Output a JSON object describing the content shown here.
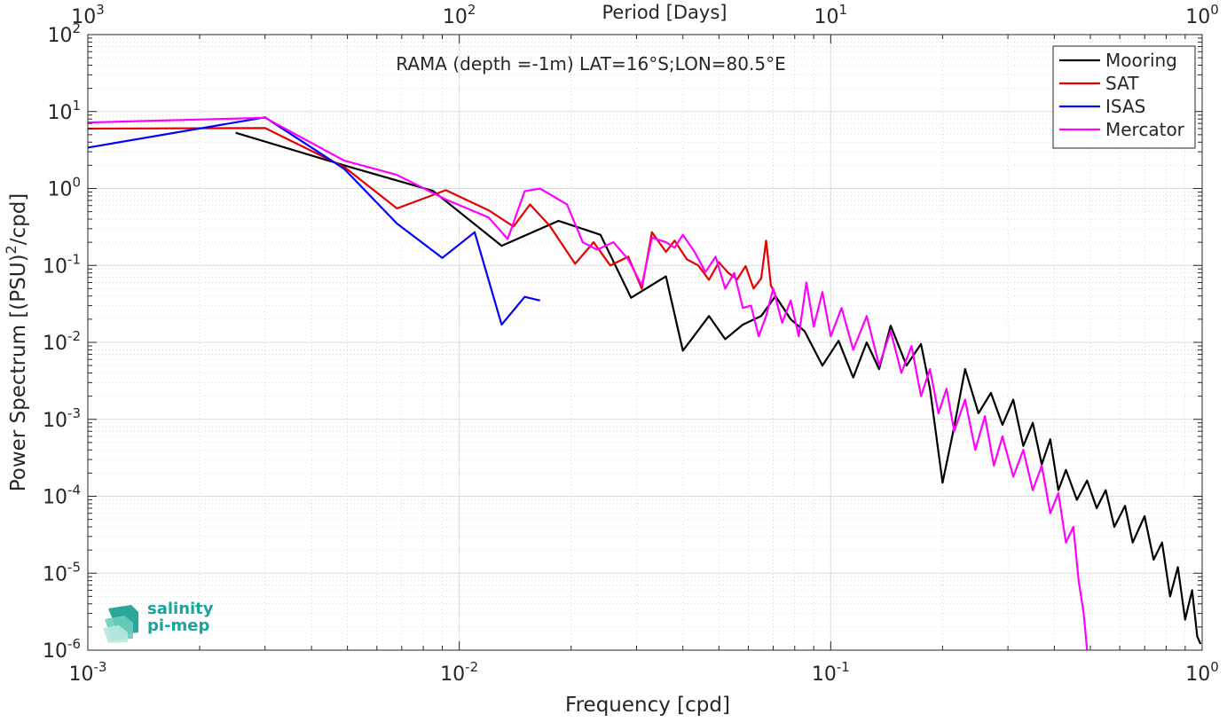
{
  "chart_data": {
    "type": "line",
    "title": "RAMA (depth =-1m) LAT=16°S;LON=80.5°E",
    "xlabel": "Frequency [cpd]",
    "ylabel": "Power Spectrum [(PSU)²/cpd]",
    "top_axis_label": "Period [Days]",
    "x_scale": "log",
    "y_scale": "log",
    "xlim": [
      0.001,
      1
    ],
    "ylim": [
      1e-06,
      100
    ],
    "grid": true,
    "legend_position": "top-right",
    "x_ticks": [
      {
        "value": 0.001,
        "base": "10",
        "exp": "-3"
      },
      {
        "value": 0.01,
        "base": "10",
        "exp": "-2"
      },
      {
        "value": 0.1,
        "base": "10",
        "exp": "-1"
      },
      {
        "value": 1,
        "base": "10",
        "exp": "0"
      }
    ],
    "top_ticks": [
      {
        "value": 0.001,
        "base": "10",
        "exp": "3"
      },
      {
        "value": 0.01,
        "base": "10",
        "exp": "2"
      },
      {
        "value": 0.1,
        "base": "10",
        "exp": "1"
      },
      {
        "value": 1,
        "base": "10",
        "exp": "0"
      }
    ],
    "y_ticks": [
      {
        "value": 100,
        "base": "10",
        "exp": "2"
      },
      {
        "value": 10,
        "base": "10",
        "exp": "1"
      },
      {
        "value": 1,
        "base": "10",
        "exp": "0"
      },
      {
        "value": 0.1,
        "base": "10",
        "exp": "-1"
      },
      {
        "value": 0.01,
        "base": "10",
        "exp": "-2"
      },
      {
        "value": 0.001,
        "base": "10",
        "exp": "-3"
      },
      {
        "value": 0.0001,
        "base": "10",
        "exp": "-4"
      },
      {
        "value": 1e-05,
        "base": "10",
        "exp": "-5"
      },
      {
        "value": 1e-06,
        "base": "10",
        "exp": "-6"
      }
    ],
    "series": [
      {
        "name": "Mooring",
        "color": "#000000",
        "points": [
          [
            0.0025,
            5.3
          ],
          [
            0.0049,
            2.0
          ],
          [
            0.0085,
            0.93
          ],
          [
            0.013,
            0.18
          ],
          [
            0.0185,
            0.38
          ],
          [
            0.024,
            0.25
          ],
          [
            0.029,
            0.038
          ],
          [
            0.036,
            0.072
          ],
          [
            0.04,
            0.0078
          ],
          [
            0.047,
            0.022
          ],
          [
            0.052,
            0.011
          ],
          [
            0.058,
            0.017
          ],
          [
            0.065,
            0.022
          ],
          [
            0.071,
            0.04
          ],
          [
            0.078,
            0.02
          ],
          [
            0.085,
            0.014
          ],
          [
            0.095,
            0.005
          ],
          [
            0.105,
            0.0105
          ],
          [
            0.115,
            0.0035
          ],
          [
            0.125,
            0.01
          ],
          [
            0.135,
            0.0045
          ],
          [
            0.145,
            0.0165
          ],
          [
            0.16,
            0.005
          ],
          [
            0.175,
            0.0095
          ],
          [
            0.185,
            0.0025
          ],
          [
            0.2,
            0.00015
          ],
          [
            0.215,
            0.0008
          ],
          [
            0.23,
            0.0045
          ],
          [
            0.25,
            0.0012
          ],
          [
            0.27,
            0.0022
          ],
          [
            0.29,
            0.00085
          ],
          [
            0.31,
            0.0018
          ],
          [
            0.33,
            0.00045
          ],
          [
            0.35,
            0.0009
          ],
          [
            0.37,
            0.00026
          ],
          [
            0.39,
            0.00055
          ],
          [
            0.41,
            0.00012
          ],
          [
            0.43,
            0.00022
          ],
          [
            0.46,
            9e-05
          ],
          [
            0.49,
            0.00016
          ],
          [
            0.52,
            7e-05
          ],
          [
            0.55,
            0.00012
          ],
          [
            0.58,
            4e-05
          ],
          [
            0.62,
            7.5e-05
          ],
          [
            0.65,
            2.5e-05
          ],
          [
            0.7,
            5.5e-05
          ],
          [
            0.74,
            1.5e-05
          ],
          [
            0.78,
            2.5e-05
          ],
          [
            0.82,
            5e-06
          ],
          [
            0.86,
            1.2e-05
          ],
          [
            0.9,
            2.5e-06
          ],
          [
            0.94,
            6e-06
          ],
          [
            0.97,
            1.5e-06
          ],
          [
            0.99,
            1.2e-06
          ]
        ]
      },
      {
        "name": "SAT",
        "color": "#e60000",
        "points": [
          [
            0.001,
            6.0
          ],
          [
            0.003,
            6.1
          ],
          [
            0.0049,
            1.9
          ],
          [
            0.0068,
            0.55
          ],
          [
            0.0092,
            0.95
          ],
          [
            0.012,
            0.52
          ],
          [
            0.014,
            0.32
          ],
          [
            0.0155,
            0.62
          ],
          [
            0.0175,
            0.33
          ],
          [
            0.0205,
            0.105
          ],
          [
            0.023,
            0.2
          ],
          [
            0.0255,
            0.1
          ],
          [
            0.0285,
            0.13
          ],
          [
            0.031,
            0.05
          ],
          [
            0.033,
            0.27
          ],
          [
            0.036,
            0.15
          ],
          [
            0.038,
            0.21
          ],
          [
            0.041,
            0.12
          ],
          [
            0.044,
            0.1
          ],
          [
            0.047,
            0.065
          ],
          [
            0.05,
            0.11
          ],
          [
            0.053,
            0.08
          ],
          [
            0.056,
            0.066
          ],
          [
            0.059,
            0.098
          ],
          [
            0.062,
            0.05
          ],
          [
            0.065,
            0.068
          ],
          [
            0.067,
            0.21
          ],
          [
            0.069,
            0.055
          ],
          [
            0.071,
            0.042
          ]
        ]
      },
      {
        "name": "ISAS",
        "color": "#0000ff",
        "points": [
          [
            0.001,
            3.4
          ],
          [
            0.003,
            8.4
          ],
          [
            0.0049,
            1.8
          ],
          [
            0.0068,
            0.35
          ],
          [
            0.009,
            0.125
          ],
          [
            0.011,
            0.27
          ],
          [
            0.013,
            0.017
          ],
          [
            0.015,
            0.039
          ],
          [
            0.0165,
            0.035
          ]
        ]
      },
      {
        "name": "Mercator",
        "color": "#ff00ff",
        "points": [
          [
            0.001,
            7.2
          ],
          [
            0.003,
            8.3
          ],
          [
            0.0049,
            2.3
          ],
          [
            0.0068,
            1.5
          ],
          [
            0.0092,
            0.72
          ],
          [
            0.012,
            0.42
          ],
          [
            0.0135,
            0.22
          ],
          [
            0.015,
            0.92
          ],
          [
            0.0165,
            1.0
          ],
          [
            0.0195,
            0.62
          ],
          [
            0.0215,
            0.2
          ],
          [
            0.0235,
            0.16
          ],
          [
            0.026,
            0.2
          ],
          [
            0.0285,
            0.12
          ],
          [
            0.031,
            0.055
          ],
          [
            0.033,
            0.23
          ],
          [
            0.036,
            0.2
          ],
          [
            0.038,
            0.17
          ],
          [
            0.04,
            0.25
          ],
          [
            0.043,
            0.15
          ],
          [
            0.046,
            0.082
          ],
          [
            0.049,
            0.13
          ],
          [
            0.052,
            0.05
          ],
          [
            0.055,
            0.08
          ],
          [
            0.058,
            0.028
          ],
          [
            0.061,
            0.03
          ],
          [
            0.064,
            0.012
          ],
          [
            0.067,
            0.022
          ],
          [
            0.07,
            0.05
          ],
          [
            0.074,
            0.018
          ],
          [
            0.078,
            0.035
          ],
          [
            0.082,
            0.012
          ],
          [
            0.086,
            0.06
          ],
          [
            0.09,
            0.016
          ],
          [
            0.095,
            0.045
          ],
          [
            0.1,
            0.012
          ],
          [
            0.107,
            0.028
          ],
          [
            0.115,
            0.008
          ],
          [
            0.125,
            0.022
          ],
          [
            0.135,
            0.005
          ],
          [
            0.145,
            0.014
          ],
          [
            0.155,
            0.004
          ],
          [
            0.165,
            0.009
          ],
          [
            0.175,
            0.002
          ],
          [
            0.185,
            0.0045
          ],
          [
            0.195,
            0.0012
          ],
          [
            0.205,
            0.0025
          ],
          [
            0.215,
            0.0007
          ],
          [
            0.23,
            0.0018
          ],
          [
            0.245,
            0.0004
          ],
          [
            0.26,
            0.0011
          ],
          [
            0.275,
            0.00025
          ],
          [
            0.29,
            0.0006
          ],
          [
            0.31,
            0.00018
          ],
          [
            0.33,
            0.0004
          ],
          [
            0.35,
            0.00012
          ],
          [
            0.37,
            0.00025
          ],
          [
            0.39,
            6e-05
          ],
          [
            0.41,
            0.00011
          ],
          [
            0.43,
            2.5e-05
          ],
          [
            0.45,
            4e-05
          ],
          [
            0.465,
            8e-06
          ],
          [
            0.48,
            3e-06
          ],
          [
            0.49,
            1e-06
          ]
        ]
      }
    ]
  },
  "logo": {
    "line1": "salinity",
    "line2": "pi-mep"
  }
}
